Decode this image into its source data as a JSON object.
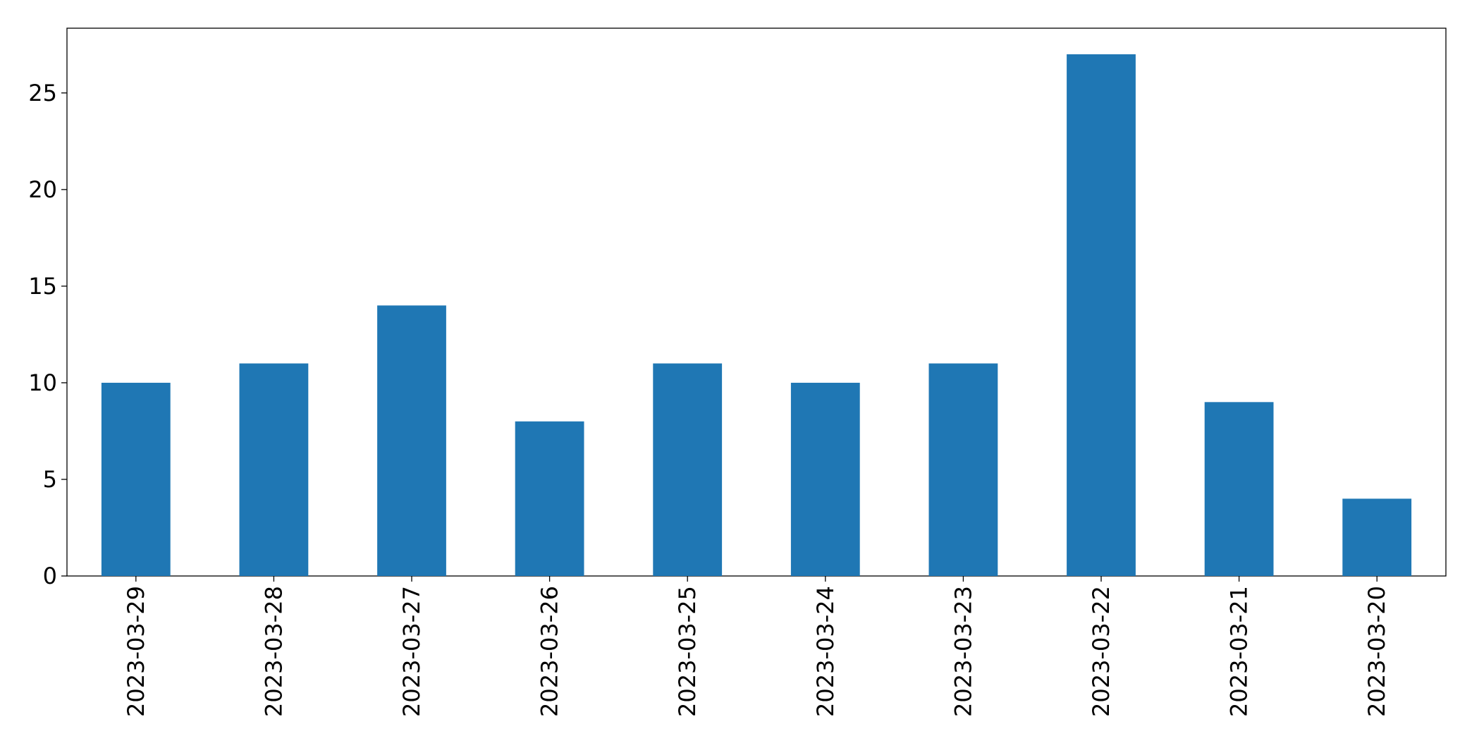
{
  "chart_data": {
    "type": "bar",
    "categories": [
      "2023-03-29",
      "2023-03-28",
      "2023-03-27",
      "2023-03-26",
      "2023-03-25",
      "2023-03-24",
      "2023-03-23",
      "2023-03-22",
      "2023-03-21",
      "2023-03-20"
    ],
    "values": [
      10,
      11,
      14,
      8,
      11,
      10,
      11,
      27,
      9,
      4
    ],
    "color": "#1f77b4",
    "ylim": [
      0,
      28.35
    ],
    "yticks": [
      0,
      5,
      10,
      15,
      20,
      25
    ],
    "grid": false
  }
}
